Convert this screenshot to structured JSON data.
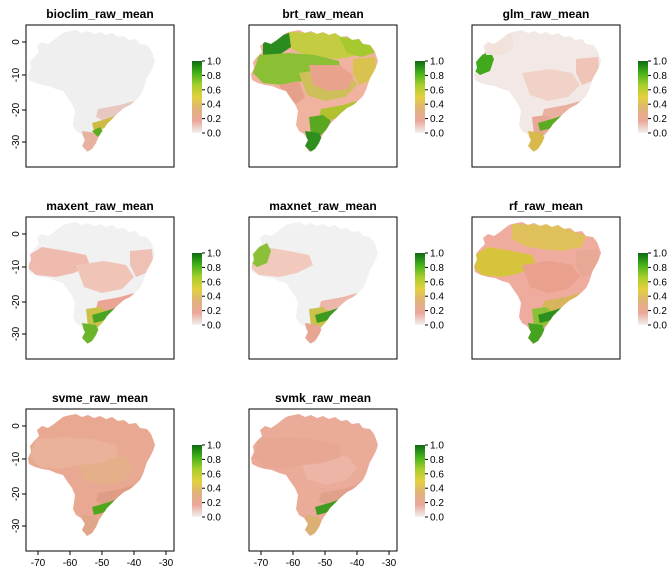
{
  "figure": {
    "legend": {
      "ticks": [
        "1.0",
        "0.8",
        "0.6",
        "0.4",
        "0.2",
        "0.0"
      ],
      "colors": [
        "#f2f2f2",
        "#eaa79b",
        "#e0b27a",
        "#e3cf3f",
        "#a6cf2b",
        "#43b21a",
        "#0e6a13"
      ]
    },
    "axes": {
      "y_ticks": [
        "0",
        "-10",
        "-20",
        "-30"
      ],
      "x_ticks": [
        "-70",
        "-60",
        "-50",
        "-40",
        "-30"
      ]
    },
    "panels": [
      {
        "title": "bioclim_raw_mean",
        "base": "#efefef",
        "show_x_axis": false,
        "regions": [
          [
            "se",
            "#e7c9c1"
          ],
          [
            "ssouth",
            "#e7b29f"
          ],
          [
            "sestrip",
            "#cdbb45"
          ],
          [
            "sesmall",
            "#5bad1f"
          ]
        ]
      },
      {
        "title": "brt_raw_mean",
        "base": "#f0b3a0",
        "show_x_axis": false,
        "regions": [
          [
            "north",
            "#c4cd42"
          ],
          [
            "nw",
            "#2a8b1e"
          ],
          [
            "amazon",
            "#8cc034"
          ],
          [
            "northcoast",
            "#a5c92e"
          ],
          [
            "center",
            "#cfbf5b"
          ],
          [
            "cerrado",
            "#e9a38c"
          ],
          [
            "eastcoast",
            "#d9c24f"
          ],
          [
            "westcenter",
            "#e6a08a"
          ],
          [
            "se",
            "#b2c12f"
          ],
          [
            "south",
            "#5aa820"
          ],
          [
            "ssouth",
            "#2f8f1e"
          ]
        ]
      },
      {
        "title": "glm_raw_mean",
        "base": "#f2e8e5",
        "show_x_axis": false,
        "regions": [
          [
            "westpocket",
            "#42a81c"
          ],
          [
            "nw",
            "#f1e3dc"
          ],
          [
            "eastcoast",
            "#f0c4b7"
          ],
          [
            "center",
            "#f1d2c8"
          ],
          [
            "se",
            "#eab0a0"
          ],
          [
            "south",
            "#e7a895"
          ],
          [
            "sestrip",
            "#5aab22"
          ],
          [
            "ssouth",
            "#d9b84c"
          ]
        ]
      },
      {
        "title": "maxent_raw_mean",
        "base": "#f1f1f1",
        "show_x_axis": false,
        "regions": [
          [
            "westband",
            "#eebbae"
          ],
          [
            "center",
            "#f0c5b8"
          ],
          [
            "eastcoast",
            "#eec1b4"
          ],
          [
            "se",
            "#eba594"
          ],
          [
            "south",
            "#c9c246"
          ],
          [
            "ssouth",
            "#6bb52c"
          ],
          [
            "sestrip",
            "#4aa321"
          ]
        ]
      },
      {
        "title": "maxnet_raw_mean",
        "base": "#f1f1f1",
        "show_x_axis": false,
        "regions": [
          [
            "westband",
            "#f2c9bd"
          ],
          [
            "westpocket",
            "#8cbf3a"
          ],
          [
            "se",
            "#ecb7a9"
          ],
          [
            "south",
            "#cbc24b"
          ],
          [
            "ssouth",
            "#e6a692"
          ],
          [
            "sestrip",
            "#3d9a1e"
          ]
        ]
      },
      {
        "title": "rf_raw_mean",
        "base": "#efac9e",
        "show_x_axis": false,
        "regions": [
          [
            "westband",
            "#d6c53c"
          ],
          [
            "north",
            "#dfc05b"
          ],
          [
            "center",
            "#e9a08c"
          ],
          [
            "eastcoast",
            "#e7a896"
          ],
          [
            "se",
            "#d8b55a"
          ],
          [
            "south",
            "#8cc036"
          ],
          [
            "ssouth",
            "#46a31f"
          ],
          [
            "sestrip",
            "#2d8f1d"
          ]
        ]
      },
      {
        "title": "svme_raw_mean",
        "base": "#e8a891",
        "show_x_axis": true,
        "regions": [
          [
            "center",
            "#e5b089"
          ],
          [
            "amazon",
            "#eab29a"
          ],
          [
            "se",
            "#e09d86"
          ],
          [
            "ssouth",
            "#dfa68a"
          ],
          [
            "sestrip",
            "#52a61e"
          ]
        ]
      },
      {
        "title": "svmk_raw_mean",
        "base": "#eaab98",
        "show_x_axis": true,
        "regions": [
          [
            "center",
            "#ecb5a5"
          ],
          [
            "amazon",
            "#e8a793"
          ],
          [
            "se",
            "#e1a08a"
          ],
          [
            "ssouth",
            "#dcb074"
          ],
          [
            "sestrip",
            "#3f9a20"
          ]
        ]
      }
    ]
  }
}
